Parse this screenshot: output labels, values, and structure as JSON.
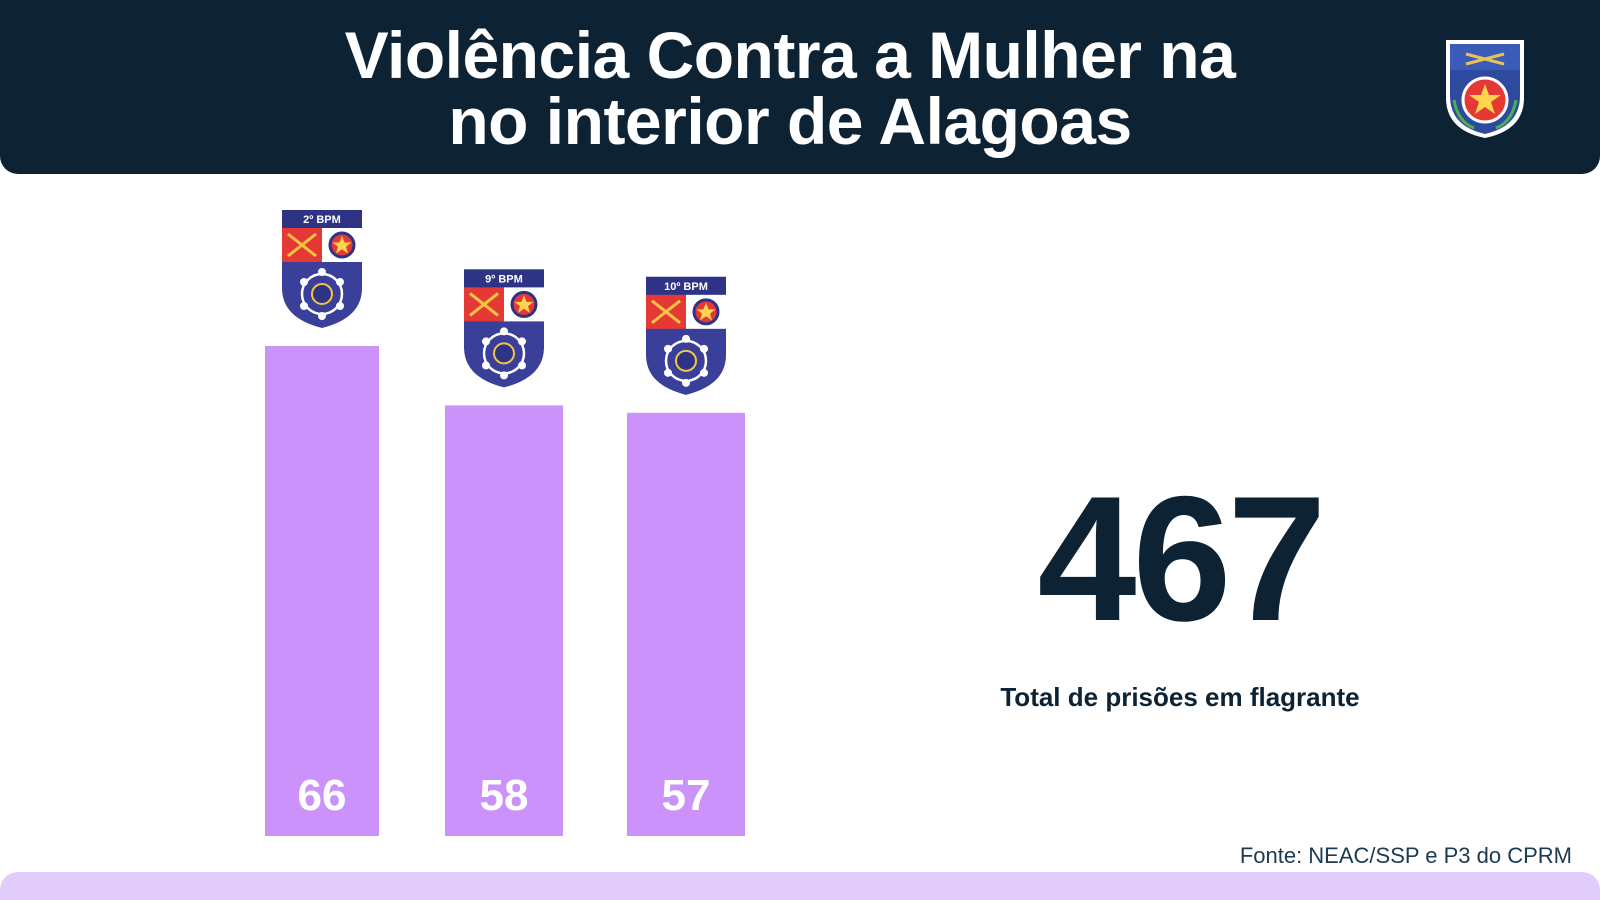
{
  "header": {
    "title_line1": "Violência Contra a Mulher na",
    "title_line2": "no interior de Alagoas"
  },
  "logo": {
    "icon": "policia-militar-alagoas-crest"
  },
  "chart_data": {
    "type": "bar",
    "categories": [
      "2º BPM",
      "9º BPM",
      "10º BPM"
    ],
    "values": [
      66,
      58,
      57
    ],
    "title": "",
    "xlabel": "",
    "ylabel": "",
    "ylim": [
      0,
      66
    ],
    "grid": false,
    "bar_color": "#cc92fc",
    "label_color": "#ffffff",
    "badge_icon": "battalion-crest"
  },
  "summary": {
    "total": "467",
    "label": "Total de prisões em flagrante"
  },
  "source": "Fonte: NEAC/SSP e P3 do CPRM",
  "colors": {
    "navy": "#0d2233",
    "bar": "#cc92fc",
    "footer": "#e2ccfb"
  }
}
